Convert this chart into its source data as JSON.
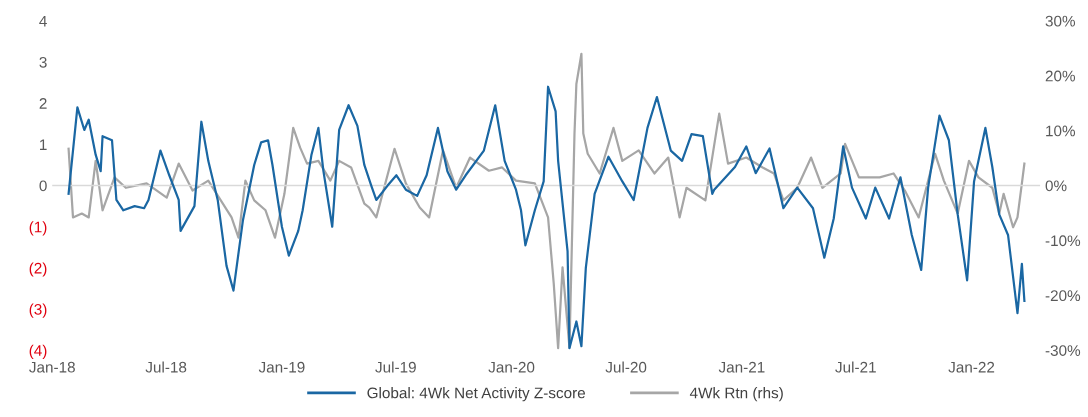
{
  "chart_data": {
    "type": "line",
    "xlim": [
      "2018-01-01",
      "2022-04-20"
    ],
    "xticks": [
      {
        "value": "2018-01-01",
        "label": "Jan-18"
      },
      {
        "value": "2018-07-01",
        "label": "Jul-18"
      },
      {
        "value": "2019-01-01",
        "label": "Jan-19"
      },
      {
        "value": "2019-07-01",
        "label": "Jul-19"
      },
      {
        "value": "2020-01-01",
        "label": "Jan-20"
      },
      {
        "value": "2020-07-01",
        "label": "Jul-20"
      },
      {
        "value": "2021-01-01",
        "label": "Jan-21"
      },
      {
        "value": "2021-07-01",
        "label": "Jul-21"
      },
      {
        "value": "2022-01-01",
        "label": "Jan-22"
      }
    ],
    "ylim": [
      -4,
      4
    ],
    "yticks": [
      {
        "value": -4,
        "label": "(4)"
      },
      {
        "value": -3,
        "label": "(3)"
      },
      {
        "value": -2,
        "label": "(2)"
      },
      {
        "value": -1,
        "label": "(1)"
      },
      0,
      1,
      2,
      3,
      4
    ],
    "y2lim": [
      -30,
      30
    ],
    "y2ticks": [
      {
        "value": -30,
        "label": "-30%"
      },
      {
        "value": -20,
        "label": "-20%"
      },
      {
        "value": -10,
        "label": "-10%"
      },
      {
        "value": 0,
        "label": "0%"
      },
      {
        "value": 10,
        "label": "10%"
      },
      {
        "value": 20,
        "label": "20%"
      },
      {
        "value": 30,
        "label": "30%"
      }
    ],
    "ref_lines": [
      {
        "axis": "y",
        "value": 0,
        "color": "#d9d9d9"
      }
    ],
    "legend": "bottom",
    "grid": false,
    "series": [
      {
        "name": "Global: 4Wk Net Activity Z-score",
        "color": "#1a67a3",
        "x": [
          "2018-01-27",
          "2018-02-10",
          "2018-02-21",
          "2018-02-28",
          "2018-03-11",
          "2018-03-19",
          "2018-03-22",
          "2018-04-06",
          "2018-04-13",
          "2018-04-24",
          "2018-05-12",
          "2018-05-27",
          "2018-06-03",
          "2018-06-22",
          "2018-07-06",
          "2018-07-21",
          "2018-07-24",
          "2018-08-15",
          "2018-08-26",
          "2018-09-06",
          "2018-09-21",
          "2018-10-05",
          "2018-10-16",
          "2018-10-31",
          "2018-11-18",
          "2018-11-29",
          "2018-12-10",
          "2018-12-17",
          "2019-01-01",
          "2019-01-12",
          "2019-01-27",
          "2019-02-03",
          "2019-02-17",
          "2019-02-28",
          "2019-03-08",
          "2019-03-22",
          "2019-04-02",
          "2019-04-17",
          "2019-05-01",
          "2019-05-12",
          "2019-05-23",
          "2019-05-31",
          "2019-06-18",
          "2019-07-02",
          "2019-07-17",
          "2019-08-04",
          "2019-08-19",
          "2019-09-06",
          "2019-09-21",
          "2019-10-05",
          "2019-10-20",
          "2019-11-18",
          "2019-12-06",
          "2019-12-21",
          "2020-01-08",
          "2020-01-16",
          "2020-01-23",
          "2020-02-07",
          "2020-02-21",
          "2020-02-28",
          "2020-03-11",
          "2020-03-15",
          "2020-03-30",
          "2020-04-02",
          "2020-04-13",
          "2020-04-21",
          "2020-04-28",
          "2020-05-12",
          "2020-06-03",
          "2020-06-25",
          "2020-07-13",
          "2020-08-04",
          "2020-08-19",
          "2020-09-10",
          "2020-09-28",
          "2020-10-13",
          "2020-10-31",
          "2020-11-15",
          "2020-11-18",
          "2020-12-21",
          "2021-01-08",
          "2021-01-23",
          "2021-02-14",
          "2021-03-08",
          "2021-03-30",
          "2021-04-24",
          "2021-05-12",
          "2021-05-27",
          "2021-06-11",
          "2021-06-25",
          "2021-07-17",
          "2021-08-01",
          "2021-08-23",
          "2021-09-10",
          "2021-09-28",
          "2021-10-13",
          "2021-10-24",
          "2021-11-11",
          "2021-11-26",
          "2021-12-10",
          "2021-12-25",
          "2022-01-05",
          "2022-01-23",
          "2022-02-03",
          "2022-02-14",
          "2022-02-28",
          "2022-03-15",
          "2022-03-22",
          "2022-03-26"
        ],
        "values": [
          -0.2,
          1.9,
          1.35,
          1.6,
          0.75,
          0.35,
          1.2,
          1.1,
          -0.35,
          -0.6,
          -0.5,
          -0.55,
          -0.35,
          0.85,
          0.25,
          -0.35,
          -1.1,
          -0.5,
          1.55,
          0.6,
          -0.35,
          -1.95,
          -2.55,
          -0.85,
          0.5,
          1.05,
          1.1,
          0.5,
          -1.0,
          -1.7,
          -1.1,
          -0.6,
          0.75,
          1.4,
          0.35,
          -1.0,
          1.35,
          1.95,
          1.45,
          0.5,
          0,
          -0.35,
          0,
          0.25,
          -0.1,
          -0.25,
          0.25,
          1.4,
          0.35,
          -0.1,
          0.25,
          0.85,
          1.95,
          0.6,
          -0.1,
          -0.6,
          -1.45,
          -0.6,
          0.1,
          2.4,
          1.8,
          0.6,
          -1.6,
          -3.95,
          -3.3,
          -3.9,
          -2.0,
          -0.2,
          0.7,
          0.1,
          -0.35,
          1.4,
          2.15,
          0.85,
          0.6,
          1.25,
          1.2,
          -0.2,
          -0.1,
          0.45,
          0.95,
          0.3,
          0.9,
          -0.55,
          -0.05,
          -0.55,
          -1.75,
          -0.8,
          0.95,
          -0.05,
          -0.8,
          -0.05,
          -0.8,
          0.2,
          -1.2,
          -2.05,
          -0.05,
          1.7,
          1.1,
          -0.7,
          -2.3,
          0.1,
          1.4,
          0.45,
          -0.7,
          -1.2,
          -3.1,
          -1.9,
          -2.8
        ]
      },
      {
        "name": "4Wk Rtn (rhs)",
        "color": "#a6a6a6",
        "axis": "y2",
        "x": [
          "2018-01-27",
          "2018-02-03",
          "2018-02-17",
          "2018-02-28",
          "2018-03-11",
          "2018-03-22",
          "2018-04-10",
          "2018-04-28",
          "2018-05-31",
          "2018-07-02",
          "2018-07-21",
          "2018-08-12",
          "2018-09-06",
          "2018-10-13",
          "2018-10-24",
          "2018-11-04",
          "2018-11-18",
          "2018-12-06",
          "2018-12-21",
          "2019-01-05",
          "2019-01-19",
          "2019-01-30",
          "2019-02-10",
          "2019-02-28",
          "2019-03-19",
          "2019-04-02",
          "2019-04-21",
          "2019-05-12",
          "2019-05-20",
          "2019-05-31",
          "2019-06-29",
          "2019-07-17",
          "2019-08-08",
          "2019-08-23",
          "2019-09-14",
          "2019-10-05",
          "2019-10-27",
          "2019-11-26",
          "2019-12-17",
          "2020-01-08",
          "2020-02-07",
          "2020-02-28",
          "2020-03-08",
          "2020-03-15",
          "2020-03-22",
          "2020-04-02",
          "2020-04-10",
          "2020-04-13",
          "2020-04-21",
          "2020-04-24",
          "2020-05-01",
          "2020-05-20",
          "2020-06-11",
          "2020-06-25",
          "2020-07-21",
          "2020-08-15",
          "2020-09-06",
          "2020-09-24",
          "2020-10-05",
          "2020-11-04",
          "2020-11-26",
          "2020-12-10",
          "2021-01-08",
          "2021-02-03",
          "2021-02-21",
          "2021-03-08",
          "2021-03-30",
          "2021-04-21",
          "2021-05-09",
          "2021-06-07",
          "2021-06-14",
          "2021-07-06",
          "2021-08-08",
          "2021-08-30",
          "2021-09-17",
          "2021-10-09",
          "2021-11-04",
          "2021-11-18",
          "2021-12-10",
          "2021-12-28",
          "2022-01-12",
          "2022-02-03",
          "2022-02-14",
          "2022-02-21",
          "2022-03-08",
          "2022-03-15",
          "2022-03-22",
          "2022-03-26"
        ],
        "values": [
          6.7,
          -5.8,
          -5.1,
          -5.8,
          4.5,
          -4.5,
          1.5,
          -0.4,
          0.4,
          -2.2,
          4.0,
          -0.9,
          0.9,
          -5.8,
          -9.5,
          0.9,
          -2.7,
          -4.5,
          -9.5,
          -1.5,
          10.5,
          6.9,
          4.0,
          4.5,
          0.9,
          4.5,
          3.3,
          -3.3,
          -4.0,
          -5.8,
          6.7,
          0.4,
          -4.0,
          -5.8,
          6.4,
          -0.4,
          5.1,
          2.7,
          3.3,
          0.9,
          0.4,
          -5.8,
          -17.8,
          -29.6,
          -14.9,
          -29.5,
          9.5,
          18.5,
          24.0,
          9.5,
          5.8,
          2.2,
          10.5,
          4.5,
          6.4,
          2.2,
          5.1,
          -5.8,
          -0.4,
          -2.7,
          13.1,
          4.0,
          5.1,
          3.3,
          2.2,
          -2.7,
          -0.4,
          5.1,
          -0.4,
          2.2,
          7.6,
          1.5,
          1.5,
          2.2,
          -0.9,
          -5.8,
          5.8,
          0.9,
          -5.1,
          4.5,
          1.5,
          -0.4,
          -5.1,
          -1.5,
          -7.6,
          -5.8,
          0.4,
          4.0
        ]
      }
    ]
  }
}
